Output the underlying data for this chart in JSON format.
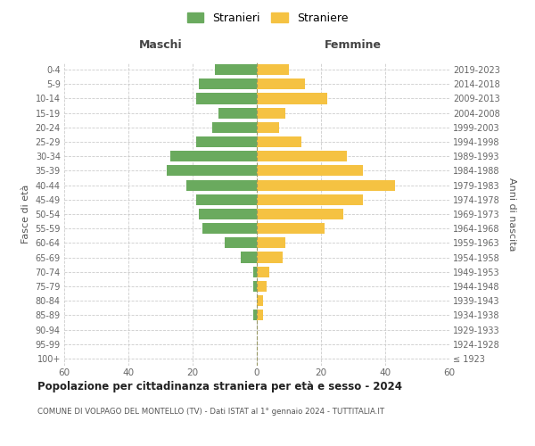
{
  "age_groups": [
    "100+",
    "95-99",
    "90-94",
    "85-89",
    "80-84",
    "75-79",
    "70-74",
    "65-69",
    "60-64",
    "55-59",
    "50-54",
    "45-49",
    "40-44",
    "35-39",
    "30-34",
    "25-29",
    "20-24",
    "15-19",
    "10-14",
    "5-9",
    "0-4"
  ],
  "birth_years": [
    "≤ 1923",
    "1924-1928",
    "1929-1933",
    "1934-1938",
    "1939-1943",
    "1944-1948",
    "1949-1953",
    "1954-1958",
    "1959-1963",
    "1964-1968",
    "1969-1973",
    "1974-1978",
    "1979-1983",
    "1984-1988",
    "1989-1993",
    "1994-1998",
    "1999-2003",
    "2004-2008",
    "2009-2013",
    "2014-2018",
    "2019-2023"
  ],
  "maschi": [
    0,
    0,
    0,
    1,
    0,
    1,
    1,
    5,
    10,
    17,
    18,
    19,
    22,
    28,
    27,
    19,
    14,
    12,
    19,
    18,
    13
  ],
  "femmine": [
    0,
    0,
    0,
    2,
    2,
    3,
    4,
    8,
    9,
    21,
    27,
    33,
    43,
    33,
    28,
    14,
    7,
    9,
    22,
    15,
    10
  ],
  "color_maschi": "#6aaa5e",
  "color_femmine": "#f5c242",
  "background_color": "#ffffff",
  "grid_color": "#cccccc",
  "title": "Popolazione per cittadinanza straniera per età e sesso - 2024",
  "subtitle": "COMUNE DI VOLPAGO DEL MONTELLO (TV) - Dati ISTAT al 1° gennaio 2024 - TUTTITALIA.IT",
  "xlabel_left": "Maschi",
  "xlabel_right": "Femmine",
  "ylabel_left": "Fasce di età",
  "ylabel_right": "Anni di nascita",
  "legend_maschi": "Stranieri",
  "legend_femmine": "Straniere",
  "xlim": 60
}
